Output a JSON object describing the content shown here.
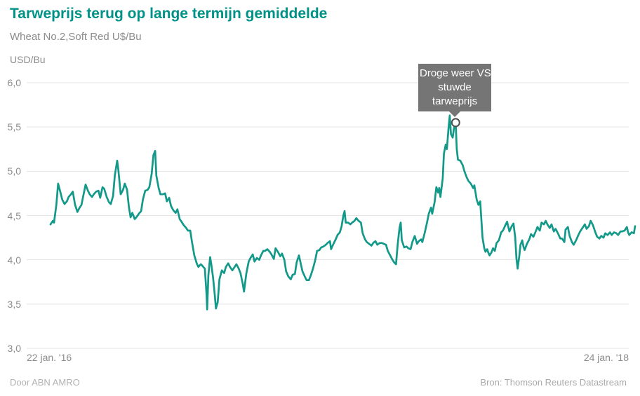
{
  "header": {
    "title": "Tarweprijs terug op lange termijn gemiddelde",
    "subtitle": "Wheat No.2,Soft Red U$/Bu"
  },
  "chart": {
    "unit_label": "USD/Bu",
    "x_start_label": "22 jan. '16",
    "x_end_label": "24 jan. '18"
  },
  "annotation": {
    "text": "Droge weer VS stuwde tarweprijs",
    "lines": [
      "Droge weer VS",
      "stuwde",
      "tarweprijs"
    ]
  },
  "footer": {
    "left": "Door ABN AMRO",
    "right": "Bron: Thomson Reuters Datastream"
  },
  "colors": {
    "accent_teal": "#009286",
    "line_teal": "#13998a",
    "tooltip_bg": "#757575",
    "tooltip_text": "#ffffff",
    "gridline": "#e3e3e3",
    "axis_text": "#8c8c8c",
    "marker_stroke": "#4d4d4d",
    "marker_fill": "#ffffff"
  },
  "chart_data": {
    "type": "line",
    "title": "Tarweprijs terug op lange termijn gemiddelde",
    "subtitle": "Wheat No.2,Soft Red U$/Bu",
    "ylabel": "USD/Bu",
    "xlabel": "",
    "ylim": [
      3.0,
      6.0
    ],
    "grid": "horizontal",
    "legend_position": "none",
    "yticks": {
      "values": [
        6.0,
        5.5,
        5.0,
        4.5,
        4.0,
        3.5,
        3.0
      ],
      "labels": [
        "6,0",
        "5,5",
        "5,0",
        "4,5",
        "4,0",
        "3,5",
        "3,0"
      ]
    },
    "x_range_labels": [
      "22 jan. '16",
      "24 jan. '18"
    ],
    "annotation": {
      "text": "Droge weer VS stuwde tarweprijs",
      "at": {
        "x": 0.693,
        "y": 5.55
      }
    },
    "series": [
      {
        "name": "Wheat No.2, Soft Red (USD/Bu)",
        "points": [
          [
            0.0,
            4.4
          ],
          [
            0.004,
            4.44
          ],
          [
            0.006,
            4.42
          ],
          [
            0.01,
            4.62
          ],
          [
            0.013,
            4.86
          ],
          [
            0.017,
            4.76
          ],
          [
            0.02,
            4.68
          ],
          [
            0.024,
            4.63
          ],
          [
            0.028,
            4.66
          ],
          [
            0.031,
            4.71
          ],
          [
            0.035,
            4.74
          ],
          [
            0.038,
            4.77
          ],
          [
            0.042,
            4.62
          ],
          [
            0.046,
            4.54
          ],
          [
            0.049,
            4.58
          ],
          [
            0.053,
            4.62
          ],
          [
            0.056,
            4.72
          ],
          [
            0.06,
            4.85
          ],
          [
            0.064,
            4.78
          ],
          [
            0.067,
            4.74
          ],
          [
            0.071,
            4.71
          ],
          [
            0.074,
            4.74
          ],
          [
            0.078,
            4.77
          ],
          [
            0.082,
            4.78
          ],
          [
            0.085,
            4.7
          ],
          [
            0.089,
            4.82
          ],
          [
            0.092,
            4.8
          ],
          [
            0.096,
            4.71
          ],
          [
            0.1,
            4.65
          ],
          [
            0.103,
            4.63
          ],
          [
            0.107,
            4.72
          ],
          [
            0.11,
            4.95
          ],
          [
            0.114,
            5.12
          ],
          [
            0.116,
            5.02
          ],
          [
            0.12,
            4.74
          ],
          [
            0.124,
            4.79
          ],
          [
            0.127,
            4.86
          ],
          [
            0.131,
            4.79
          ],
          [
            0.134,
            4.6
          ],
          [
            0.137,
            4.48
          ],
          [
            0.14,
            4.53
          ],
          [
            0.144,
            4.46
          ],
          [
            0.148,
            4.49
          ],
          [
            0.151,
            4.52
          ],
          [
            0.155,
            4.55
          ],
          [
            0.158,
            4.68
          ],
          [
            0.162,
            4.78
          ],
          [
            0.166,
            4.79
          ],
          [
            0.169,
            4.82
          ],
          [
            0.173,
            4.97
          ],
          [
            0.176,
            5.18
          ],
          [
            0.179,
            5.23
          ],
          [
            0.181,
            4.95
          ],
          [
            0.185,
            4.81
          ],
          [
            0.188,
            4.74
          ],
          [
            0.192,
            4.74
          ],
          [
            0.196,
            4.75
          ],
          [
            0.199,
            4.66
          ],
          [
            0.203,
            4.7
          ],
          [
            0.206,
            4.61
          ],
          [
            0.21,
            4.56
          ],
          [
            0.214,
            4.53
          ],
          [
            0.217,
            4.57
          ],
          [
            0.221,
            4.46
          ],
          [
            0.224,
            4.43
          ],
          [
            0.228,
            4.39
          ],
          [
            0.232,
            4.36
          ],
          [
            0.235,
            4.33
          ],
          [
            0.239,
            4.33
          ],
          [
            0.242,
            4.2
          ],
          [
            0.246,
            4.05
          ],
          [
            0.25,
            3.96
          ],
          [
            0.253,
            3.92
          ],
          [
            0.257,
            3.95
          ],
          [
            0.26,
            3.93
          ],
          [
            0.264,
            3.9
          ],
          [
            0.267,
            3.6
          ],
          [
            0.268,
            3.44
          ],
          [
            0.27,
            3.82
          ],
          [
            0.273,
            4.03
          ],
          [
            0.275,
            3.95
          ],
          [
            0.278,
            3.8
          ],
          [
            0.281,
            3.6
          ],
          [
            0.283,
            3.45
          ],
          [
            0.286,
            3.52
          ],
          [
            0.289,
            3.78
          ],
          [
            0.293,
            3.88
          ],
          [
            0.297,
            3.85
          ],
          [
            0.3,
            3.92
          ],
          [
            0.304,
            3.96
          ],
          [
            0.307,
            3.92
          ],
          [
            0.311,
            3.88
          ],
          [
            0.315,
            3.92
          ],
          [
            0.318,
            3.95
          ],
          [
            0.322,
            3.9
          ],
          [
            0.325,
            3.85
          ],
          [
            0.329,
            3.72
          ],
          [
            0.331,
            3.64
          ],
          [
            0.335,
            3.85
          ],
          [
            0.339,
            3.98
          ],
          [
            0.342,
            4.02
          ],
          [
            0.346,
            4.06
          ],
          [
            0.349,
            3.98
          ],
          [
            0.353,
            4.02
          ],
          [
            0.357,
            4.0
          ],
          [
            0.36,
            4.05
          ],
          [
            0.364,
            4.1
          ],
          [
            0.367,
            4.1
          ],
          [
            0.371,
            4.12
          ],
          [
            0.375,
            4.09
          ],
          [
            0.378,
            4.06
          ],
          [
            0.382,
            4.01
          ],
          [
            0.385,
            4.13
          ],
          [
            0.389,
            4.09
          ],
          [
            0.393,
            4.04
          ],
          [
            0.396,
            4.07
          ],
          [
            0.4,
            4.0
          ],
          [
            0.403,
            3.87
          ],
          [
            0.407,
            3.81
          ],
          [
            0.411,
            3.78
          ],
          [
            0.414,
            3.83
          ],
          [
            0.418,
            3.84
          ],
          [
            0.421,
            3.97
          ],
          [
            0.425,
            4.05
          ],
          [
            0.431,
            3.87
          ],
          [
            0.435,
            3.81
          ],
          [
            0.438,
            3.77
          ],
          [
            0.442,
            3.77
          ],
          [
            0.445,
            3.82
          ],
          [
            0.449,
            3.9
          ],
          [
            0.453,
            4.0
          ],
          [
            0.456,
            4.1
          ],
          [
            0.46,
            4.11
          ],
          [
            0.463,
            4.14
          ],
          [
            0.467,
            4.15
          ],
          [
            0.471,
            4.17
          ],
          [
            0.474,
            4.19
          ],
          [
            0.478,
            4.21
          ],
          [
            0.48,
            4.12
          ],
          [
            0.484,
            4.18
          ],
          [
            0.487,
            4.22
          ],
          [
            0.491,
            4.28
          ],
          [
            0.495,
            4.31
          ],
          [
            0.498,
            4.38
          ],
          [
            0.501,
            4.5
          ],
          [
            0.503,
            4.55
          ],
          [
            0.505,
            4.42
          ],
          [
            0.509,
            4.42
          ],
          [
            0.513,
            4.4
          ],
          [
            0.516,
            4.42
          ],
          [
            0.52,
            4.44
          ],
          [
            0.523,
            4.47
          ],
          [
            0.527,
            4.44
          ],
          [
            0.531,
            4.42
          ],
          [
            0.534,
            4.3
          ],
          [
            0.538,
            4.23
          ],
          [
            0.541,
            4.2
          ],
          [
            0.545,
            4.18
          ],
          [
            0.549,
            4.16
          ],
          [
            0.552,
            4.19
          ],
          [
            0.556,
            4.21
          ],
          [
            0.559,
            4.17
          ],
          [
            0.563,
            4.19
          ],
          [
            0.567,
            4.19
          ],
          [
            0.57,
            4.18
          ],
          [
            0.574,
            4.17
          ],
          [
            0.577,
            4.1
          ],
          [
            0.581,
            4.05
          ],
          [
            0.585,
            4.0
          ],
          [
            0.588,
            3.97
          ],
          [
            0.591,
            3.95
          ],
          [
            0.594,
            4.18
          ],
          [
            0.597,
            4.36
          ],
          [
            0.599,
            4.42
          ],
          [
            0.601,
            4.22
          ],
          [
            0.605,
            4.14
          ],
          [
            0.609,
            4.15
          ],
          [
            0.612,
            4.13
          ],
          [
            0.616,
            4.12
          ],
          [
            0.619,
            4.2
          ],
          [
            0.623,
            4.27
          ],
          [
            0.627,
            4.18
          ],
          [
            0.63,
            4.21
          ],
          [
            0.634,
            4.23
          ],
          [
            0.636,
            4.2
          ],
          [
            0.64,
            4.3
          ],
          [
            0.644,
            4.42
          ],
          [
            0.647,
            4.52
          ],
          [
            0.651,
            4.59
          ],
          [
            0.653,
            4.52
          ],
          [
            0.657,
            4.65
          ],
          [
            0.66,
            4.82
          ],
          [
            0.663,
            4.76
          ],
          [
            0.665,
            4.81
          ],
          [
            0.667,
            4.71
          ],
          [
            0.671,
            4.92
          ],
          [
            0.673,
            5.2
          ],
          [
            0.676,
            5.3
          ],
          [
            0.678,
            5.25
          ],
          [
            0.681,
            5.5
          ],
          [
            0.683,
            5.63
          ],
          [
            0.685,
            5.42
          ],
          [
            0.688,
            5.38
          ],
          [
            0.69,
            5.48
          ],
          [
            0.693,
            5.55
          ],
          [
            0.695,
            5.25
          ],
          [
            0.697,
            5.13
          ],
          [
            0.701,
            5.12
          ],
          [
            0.705,
            5.07
          ],
          [
            0.708,
            5.0
          ],
          [
            0.712,
            4.93
          ],
          [
            0.715,
            4.89
          ],
          [
            0.719,
            4.86
          ],
          [
            0.723,
            4.81
          ],
          [
            0.725,
            4.84
          ],
          [
            0.729,
            4.68
          ],
          [
            0.732,
            4.62
          ],
          [
            0.735,
            4.66
          ],
          [
            0.737,
            4.46
          ],
          [
            0.739,
            4.25
          ],
          [
            0.742,
            4.13
          ],
          [
            0.744,
            4.09
          ],
          [
            0.747,
            4.12
          ],
          [
            0.749,
            4.08
          ],
          [
            0.751,
            4.05
          ],
          [
            0.754,
            4.08
          ],
          [
            0.757,
            4.13
          ],
          [
            0.76,
            4.1
          ],
          [
            0.763,
            4.19
          ],
          [
            0.767,
            4.22
          ],
          [
            0.771,
            4.31
          ],
          [
            0.774,
            4.33
          ],
          [
            0.778,
            4.39
          ],
          [
            0.781,
            4.43
          ],
          [
            0.785,
            4.32
          ],
          [
            0.789,
            4.38
          ],
          [
            0.792,
            4.41
          ],
          [
            0.795,
            4.25
          ],
          [
            0.797,
            4.02
          ],
          [
            0.799,
            3.9
          ],
          [
            0.802,
            4.05
          ],
          [
            0.804,
            4.17
          ],
          [
            0.807,
            4.22
          ],
          [
            0.809,
            4.15
          ],
          [
            0.811,
            4.11
          ],
          [
            0.815,
            4.18
          ],
          [
            0.819,
            4.23
          ],
          [
            0.822,
            4.29
          ],
          [
            0.826,
            4.26
          ],
          [
            0.83,
            4.32
          ],
          [
            0.833,
            4.37
          ],
          [
            0.837,
            4.33
          ],
          [
            0.84,
            4.42
          ],
          [
            0.844,
            4.4
          ],
          [
            0.847,
            4.44
          ],
          [
            0.85,
            4.4
          ],
          [
            0.854,
            4.36
          ],
          [
            0.857,
            4.4
          ],
          [
            0.861,
            4.32
          ],
          [
            0.864,
            4.35
          ],
          [
            0.868,
            4.3
          ],
          [
            0.872,
            4.24
          ],
          [
            0.875,
            4.24
          ],
          [
            0.879,
            4.2
          ],
          [
            0.881,
            4.34
          ],
          [
            0.885,
            4.37
          ],
          [
            0.888,
            4.27
          ],
          [
            0.892,
            4.2
          ],
          [
            0.895,
            4.17
          ],
          [
            0.899,
            4.22
          ],
          [
            0.903,
            4.28
          ],
          [
            0.906,
            4.32
          ],
          [
            0.91,
            4.36
          ],
          [
            0.914,
            4.4
          ],
          [
            0.917,
            4.35
          ],
          [
            0.921,
            4.38
          ],
          [
            0.924,
            4.44
          ],
          [
            0.928,
            4.39
          ],
          [
            0.932,
            4.31
          ],
          [
            0.935,
            4.26
          ],
          [
            0.939,
            4.24
          ],
          [
            0.942,
            4.27
          ],
          [
            0.946,
            4.25
          ],
          [
            0.949,
            4.3
          ],
          [
            0.953,
            4.28
          ],
          [
            0.957,
            4.31
          ],
          [
            0.96,
            4.28
          ],
          [
            0.964,
            4.31
          ],
          [
            0.968,
            4.3
          ],
          [
            0.971,
            4.28
          ],
          [
            0.975,
            4.32
          ],
          [
            0.978,
            4.32
          ],
          [
            0.982,
            4.33
          ],
          [
            0.986,
            4.37
          ],
          [
            0.988,
            4.31
          ],
          [
            0.99,
            4.28
          ],
          [
            0.994,
            4.31
          ],
          [
            0.998,
            4.3
          ],
          [
            1.0,
            4.38
          ]
        ]
      }
    ]
  }
}
